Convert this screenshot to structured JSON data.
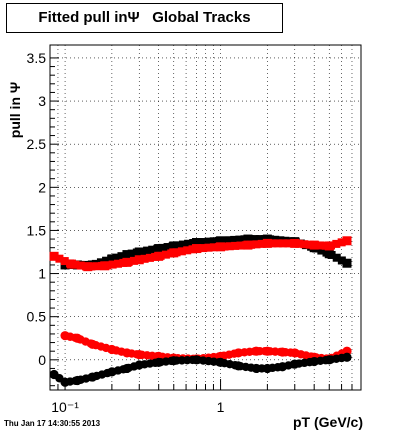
{
  "title": "Fitted pull inΨ   Global Tracks",
  "timestamp": "Thu Jan 17 14:30:55 2013",
  "chart_data": {
    "type": "scatter",
    "title": "Fitted pull inΨ   Global Tracks",
    "xlabel": "pT (GeV/c)",
    "ylabel": "pull in Ψ",
    "xscale": "log",
    "xlim": [
      0.08,
      8.0
    ],
    "ylim": [
      -0.35,
      3.65
    ],
    "yticks": [
      0,
      0.5,
      1,
      1.5,
      2,
      2.5,
      3,
      3.5
    ],
    "ytick_labels": [
      "0",
      "0.5",
      "1",
      "1.5",
      "2",
      "2.5",
      "3",
      "3.5"
    ],
    "xtick_labels": [
      "10⁻¹",
      "1"
    ],
    "grid": true,
    "legend": "none",
    "series": [
      {
        "color": "#000000",
        "marker": "square",
        "x": [
          0.1,
          0.12,
          0.15,
          0.2,
          0.25,
          0.3,
          0.4,
          0.5,
          0.7,
          1.0,
          1.5,
          2.0,
          3.0,
          4.0,
          5.0,
          6.5
        ],
        "y": [
          1.1,
          1.1,
          1.1,
          1.17,
          1.22,
          1.25,
          1.29,
          1.32,
          1.36,
          1.38,
          1.4,
          1.4,
          1.37,
          1.3,
          1.23,
          1.12
        ]
      },
      {
        "color": "#ff0000",
        "marker": "square",
        "x": [
          0.085,
          0.11,
          0.14,
          0.18,
          0.25,
          0.3,
          0.4,
          0.5,
          0.7,
          1.0,
          1.5,
          2.0,
          3.0,
          4.0,
          5.0,
          6.5
        ],
        "y": [
          1.2,
          1.11,
          1.08,
          1.09,
          1.13,
          1.16,
          1.2,
          1.24,
          1.29,
          1.31,
          1.33,
          1.35,
          1.35,
          1.33,
          1.32,
          1.38
        ]
      },
      {
        "color": "#ff0000",
        "marker": "circle",
        "x": [
          0.1,
          0.12,
          0.15,
          0.2,
          0.25,
          0.3,
          0.4,
          0.5,
          0.7,
          1.0,
          1.3,
          1.7,
          2.0,
          2.5,
          3.0,
          4.0,
          5.0,
          6.5
        ],
        "y": [
          0.28,
          0.25,
          0.18,
          0.12,
          0.08,
          0.06,
          0.04,
          0.02,
          0.01,
          0.04,
          0.08,
          0.1,
          0.1,
          0.09,
          0.08,
          0.03,
          0.01,
          0.1
        ]
      },
      {
        "color": "#000000",
        "marker": "circle",
        "x": [
          0.085,
          0.1,
          0.12,
          0.15,
          0.2,
          0.25,
          0.3,
          0.4,
          0.5,
          0.7,
          1.0,
          1.3,
          1.7,
          2.0,
          2.5,
          3.0,
          4.0,
          5.0,
          6.5
        ],
        "y": [
          -0.17,
          -0.26,
          -0.24,
          -0.2,
          -0.14,
          -0.1,
          -0.06,
          -0.03,
          -0.01,
          0.0,
          -0.03,
          -0.07,
          -0.1,
          -0.1,
          -0.08,
          -0.05,
          -0.02,
          0.0,
          0.03
        ]
      }
    ]
  }
}
